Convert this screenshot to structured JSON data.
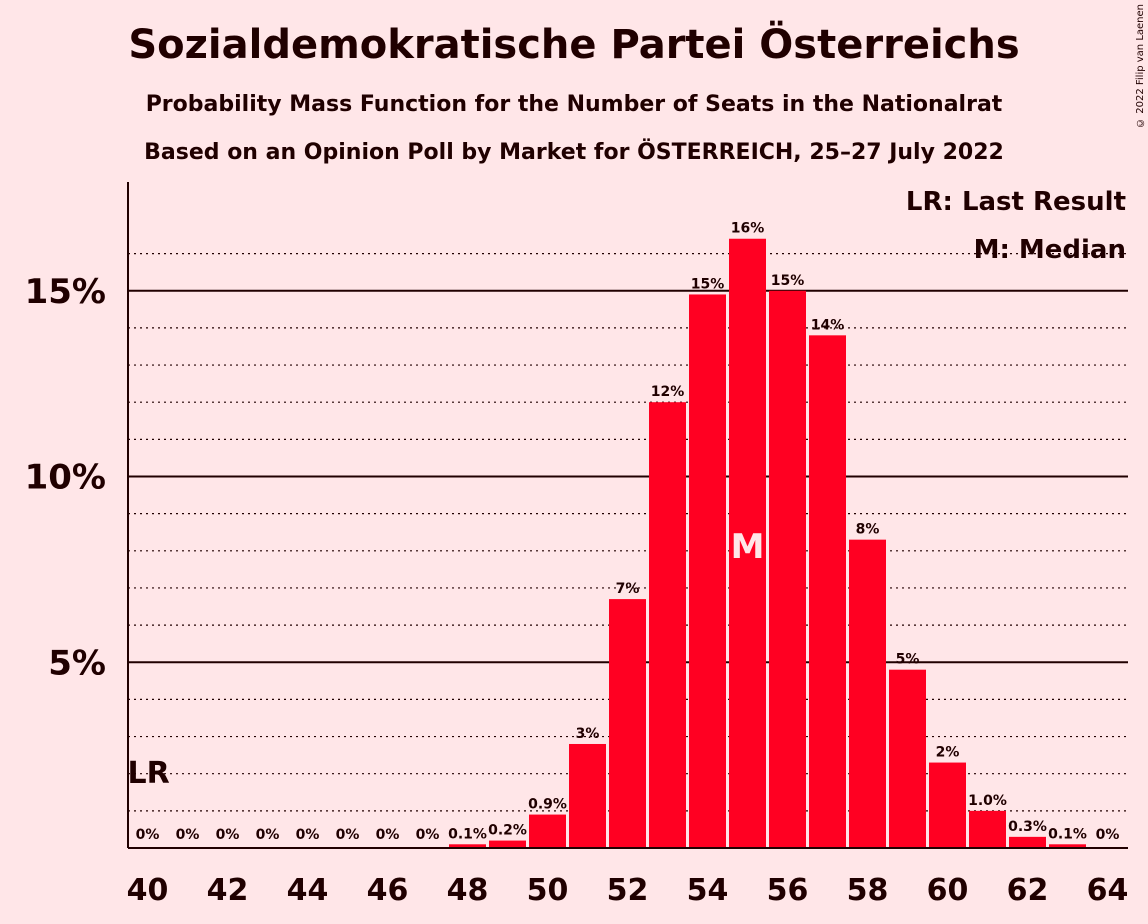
{
  "title": "Sozialdemokratische Partei Österreichs",
  "subtitle1": "Probability Mass Function for the Number of Seats in the Nationalrat",
  "subtitle2": "Based on an Opinion Poll by Market for ÖSTERREICH, 25–27 July 2022",
  "copyright": "© 2022 Filip van Laenen",
  "chart_data": {
    "type": "bar",
    "x": [
      40,
      41,
      42,
      43,
      44,
      45,
      46,
      47,
      48,
      49,
      50,
      51,
      52,
      53,
      54,
      55,
      56,
      57,
      58,
      59,
      60,
      61,
      62,
      63,
      64
    ],
    "values": [
      0,
      0,
      0,
      0,
      0,
      0,
      0,
      0,
      0.1,
      0.2,
      0.9,
      2.8,
      6.7,
      12.0,
      14.9,
      16.4,
      15.0,
      13.8,
      8.3,
      4.8,
      2.3,
      1.0,
      0.3,
      0.1,
      0
    ],
    "data_labels": [
      "0%",
      "0%",
      "0%",
      "0%",
      "0%",
      "0%",
      "0%",
      "0%",
      "0.1%",
      "0.2%",
      "0.9%",
      "3%",
      "7%",
      "12%",
      "15%",
      "16%",
      "15%",
      "14%",
      "8%",
      "5%",
      "2%",
      "1.0%",
      "0.3%",
      "0.1%",
      "0%"
    ],
    "x_ticks": [
      "40",
      "42",
      "44",
      "46",
      "48",
      "50",
      "52",
      "54",
      "56",
      "58",
      "60",
      "62",
      "64"
    ],
    "y_ticks": [
      {
        "value": 5,
        "label": "5%"
      },
      {
        "value": 10,
        "label": "10%"
      },
      {
        "value": 15,
        "label": "15%"
      }
    ],
    "ylim": [
      0,
      17.5
    ],
    "last_result": {
      "seat": 40,
      "label": "LR",
      "value": 2.0
    },
    "median": {
      "seat": 55,
      "label": "M"
    },
    "legend": [
      "LR: Last Result",
      "M: Median"
    ],
    "legend_position": "top-right",
    "bar_color": "#FF0022"
  }
}
